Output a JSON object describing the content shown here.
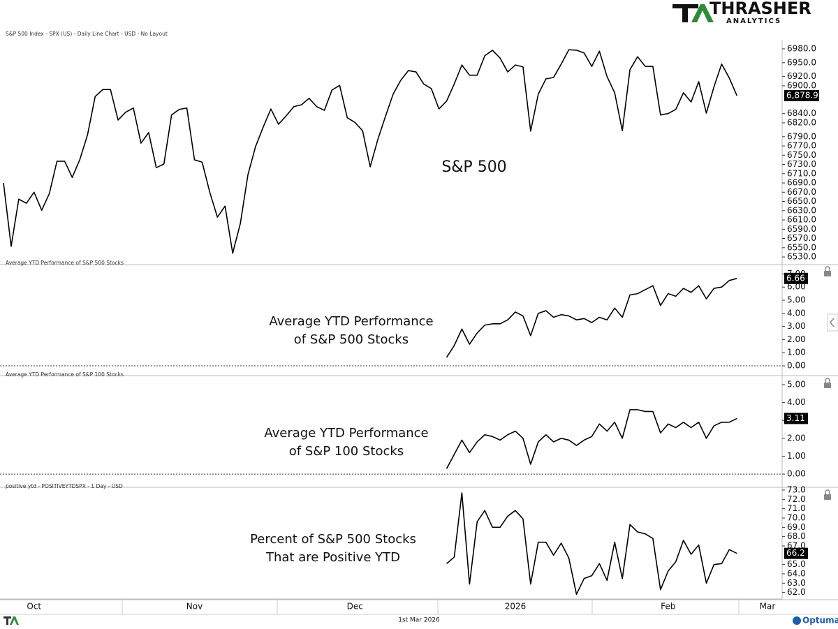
{
  "header": {
    "logo_title": "THRASHER",
    "logo_subtitle": "ANALYTICS"
  },
  "x_axis": {
    "categories": [
      null,
      null,
      null,
      null,
      "Oct",
      null,
      null,
      null,
      null,
      null,
      null,
      null,
      null,
      null,
      null,
      null,
      null,
      null,
      null,
      null,
      null,
      null,
      null,
      null,
      null,
      "Nov",
      null,
      null,
      null,
      null,
      null,
      null,
      null,
      null,
      null,
      null,
      null,
      null,
      null,
      null,
      null,
      null,
      null,
      null,
      null,
      null,
      "Dec",
      null,
      null,
      null,
      null,
      null,
      null,
      null,
      null,
      null,
      null,
      null,
      null,
      null,
      null,
      null,
      null,
      null,
      null,
      null,
      null,
      "2026",
      null,
      null,
      null,
      null,
      null,
      null,
      null,
      null,
      null,
      null,
      null,
      null,
      null,
      null,
      null,
      null,
      null,
      null,
      null,
      "Feb",
      null,
      null,
      null,
      null,
      null,
      null,
      null,
      null,
      null,
      null,
      null,
      null,
      "Mar",
      null
    ]
  },
  "chart_data": [
    {
      "type": "line",
      "title": "S&P 500 Index - SPX (US) - Daily Line Chart - USD - No Layout",
      "annotation": [
        "S&P 500"
      ],
      "color": "#000000",
      "last_label": "6,878.9",
      "values": [
        6690,
        6553,
        6655,
        6646,
        6670,
        6631,
        6667,
        6737,
        6737,
        6702,
        6741,
        6794,
        6877,
        6892,
        6892,
        6826,
        6843,
        6852,
        6776,
        6799,
        6723,
        6731,
        6837,
        6849,
        6852,
        6740,
        6735,
        6670,
        6616,
        6640,
        6538,
        6602,
        6708,
        6769,
        6811,
        6850,
        6817,
        6835,
        6855,
        6859,
        6873,
        6855,
        6847,
        6891,
        6901,
        6831,
        6821,
        6803,
        6725,
        6784,
        6834,
        6882,
        6912,
        6933,
        6930,
        6904,
        6894,
        6850,
        6867,
        6904,
        6945,
        6923,
        6923,
        6965,
        6977,
        6960,
        6930,
        6945,
        6941,
        6802,
        6882,
        6915,
        6918,
        6947,
        6978,
        6977,
        6971,
        6942,
        6975,
        6920,
        6885,
        6803,
        6935,
        6963,
        6942,
        6942,
        6837,
        6840,
        6849,
        6885,
        6865,
        6909,
        6841,
        6898,
        6947,
        6917,
        6878.9,
        null,
        null,
        null,
        null,
        null
      ],
      "ylim": [
        6515,
        6995
      ],
      "yticks": [
        {
          "value": 6530,
          "label": "6530.0"
        },
        {
          "value": 6550,
          "label": "6550.0"
        },
        {
          "value": 6570,
          "label": "6570.0"
        },
        {
          "value": 6590,
          "label": "6590.0"
        },
        {
          "value": 6610,
          "label": "6610.0"
        },
        {
          "value": 6630,
          "label": "6630.0"
        },
        {
          "value": 6650,
          "label": "6650.0"
        },
        {
          "value": 6670,
          "label": "6670.0"
        },
        {
          "value": 6690,
          "label": "6690.0"
        },
        {
          "value": 6710,
          "label": "6710.0"
        },
        {
          "value": 6730,
          "label": "6730.0"
        },
        {
          "value": 6750,
          "label": "6750.0"
        },
        {
          "value": 6770,
          "label": "6770.0"
        },
        {
          "value": 6790,
          "label": "6790.0"
        },
        {
          "value": 6820,
          "label": "6820.0"
        },
        {
          "value": 6840,
          "label": "6840.0"
        },
        {
          "value": 6900,
          "label": "6900.0"
        },
        {
          "value": 6920,
          "label": "6920.0"
        },
        {
          "value": 6950,
          "label": "6950.0"
        },
        {
          "value": 6980,
          "label": "6980.0"
        }
      ],
      "zero_line": false
    },
    {
      "type": "line",
      "title": "Average YTD Performance of S&P 500 Stocks",
      "annotation": [
        "Average YTD Performance",
        "of S&P 500 Stocks"
      ],
      "color": "#000000",
      "last_label": "6.66",
      "values": [
        null,
        null,
        null,
        null,
        null,
        null,
        null,
        null,
        null,
        null,
        null,
        null,
        null,
        null,
        null,
        null,
        null,
        null,
        null,
        null,
        null,
        null,
        null,
        null,
        null,
        null,
        null,
        null,
        null,
        null,
        null,
        null,
        null,
        null,
        null,
        null,
        null,
        null,
        null,
        null,
        null,
        null,
        null,
        null,
        null,
        null,
        null,
        null,
        null,
        null,
        null,
        null,
        null,
        null,
        null,
        null,
        null,
        null,
        0.64,
        1.55,
        2.8,
        1.65,
        2.5,
        3.1,
        3.2,
        3.2,
        3.5,
        4.1,
        3.8,
        2.3,
        4.0,
        4.2,
        3.7,
        3.9,
        3.8,
        3.5,
        3.6,
        3.3,
        3.7,
        3.5,
        4.4,
        3.7,
        5.4,
        5.5,
        5.8,
        6.1,
        4.6,
        5.5,
        5.3,
        5.9,
        5.6,
        6.1,
        5.1,
        5.9,
        6.0,
        6.5,
        6.66,
        null,
        null,
        null,
        null,
        null
      ],
      "ylim": [
        -0.69,
        7.66
      ],
      "yticks": [
        {
          "value": 0,
          "label": "0.00"
        },
        {
          "value": 1,
          "label": "1.00"
        },
        {
          "value": 2,
          "label": "2.00"
        },
        {
          "value": 3,
          "label": "3.00"
        },
        {
          "value": 4,
          "label": "4.00"
        },
        {
          "value": 5,
          "label": "5.00"
        },
        {
          "value": 6,
          "label": "6.00"
        },
        {
          "value": 7,
          "label": "7.00"
        }
      ],
      "zero_line": true
    },
    {
      "type": "line",
      "title": "Average YTD Performance of S&P 100 Stocks",
      "annotation": [
        "Average YTD Performance",
        "of S&P 100 Stocks"
      ],
      "color": "#000000",
      "last_label": "3.11",
      "values": [
        null,
        null,
        null,
        null,
        null,
        null,
        null,
        null,
        null,
        null,
        null,
        null,
        null,
        null,
        null,
        null,
        null,
        null,
        null,
        null,
        null,
        null,
        null,
        null,
        null,
        null,
        null,
        null,
        null,
        null,
        null,
        null,
        null,
        null,
        null,
        null,
        null,
        null,
        null,
        null,
        null,
        null,
        null,
        null,
        null,
        null,
        null,
        null,
        null,
        null,
        null,
        null,
        null,
        null,
        null,
        null,
        null,
        null,
        0.3,
        1.1,
        1.9,
        1.2,
        1.8,
        2.2,
        2.1,
        1.9,
        2.2,
        2.4,
        2.0,
        0.55,
        1.8,
        2.2,
        1.8,
        2.0,
        1.9,
        1.6,
        1.9,
        2.1,
        2.8,
        2.4,
        2.9,
        2.0,
        3.6,
        3.6,
        3.5,
        3.5,
        2.3,
        2.8,
        2.6,
        2.9,
        2.6,
        2.9,
        2.0,
        2.7,
        2.9,
        2.9,
        3.11,
        null,
        null,
        null,
        null,
        null
      ],
      "ylim": [
        -0.7,
        5.43
      ],
      "yticks": [
        {
          "value": 0,
          "label": "0.00"
        },
        {
          "value": 1,
          "label": "1.00"
        },
        {
          "value": 2,
          "label": "2.00"
        },
        {
          "value": 3,
          "label": "3.00"
        },
        {
          "value": 4,
          "label": "4.00"
        },
        {
          "value": 5,
          "label": "5.00"
        }
      ],
      "zero_line": true
    },
    {
      "type": "line",
      "title": "positive ytd - POSITIVEYTDSPX - 1 Day - USD",
      "annotation": [
        "Percent of S&P 500 Stocks",
        "That are Positive YTD"
      ],
      "color": "#000000",
      "last_label": "66.2",
      "values": [
        null,
        null,
        null,
        null,
        null,
        null,
        null,
        null,
        null,
        null,
        null,
        null,
        null,
        null,
        null,
        null,
        null,
        null,
        null,
        null,
        null,
        null,
        null,
        null,
        null,
        null,
        null,
        null,
        null,
        null,
        null,
        null,
        null,
        null,
        null,
        null,
        null,
        null,
        null,
        null,
        null,
        null,
        null,
        null,
        null,
        null,
        null,
        null,
        null,
        null,
        null,
        null,
        null,
        null,
        null,
        null,
        null,
        null,
        65.1,
        65.8,
        72.7,
        62.9,
        69.6,
        70.8,
        69.0,
        69.0,
        70.2,
        70.8,
        69.9,
        62.9,
        67.4,
        67.4,
        66.0,
        67.3,
        65.7,
        61.8,
        63.5,
        63.8,
        65.1,
        63.3,
        67.4,
        63.5,
        69.3,
        68.5,
        68.3,
        67.8,
        62.3,
        64.3,
        65.3,
        67.6,
        66.1,
        67.1,
        63.0,
        65.0,
        65.1,
        66.6,
        66.2,
        null,
        null,
        null,
        null,
        null
      ],
      "ylim": [
        61.3,
        73.15
      ],
      "yticks": [
        {
          "value": 62,
          "label": "62.0"
        },
        {
          "value": 63,
          "label": "63.0"
        },
        {
          "value": 64,
          "label": "64.0"
        },
        {
          "value": 65,
          "label": "65.0"
        },
        {
          "value": 67,
          "label": "67.0"
        },
        {
          "value": 68,
          "label": "68.0"
        },
        {
          "value": 69,
          "label": "69.0"
        },
        {
          "value": 70,
          "label": "70.0"
        },
        {
          "value": 71,
          "label": "71.0"
        },
        {
          "value": 72,
          "label": "72.0"
        },
        {
          "value": 73,
          "label": "73.0"
        }
      ],
      "zero_line": false
    }
  ],
  "footer": {
    "date": "1st Mar 2026",
    "brand": "Optuma"
  }
}
